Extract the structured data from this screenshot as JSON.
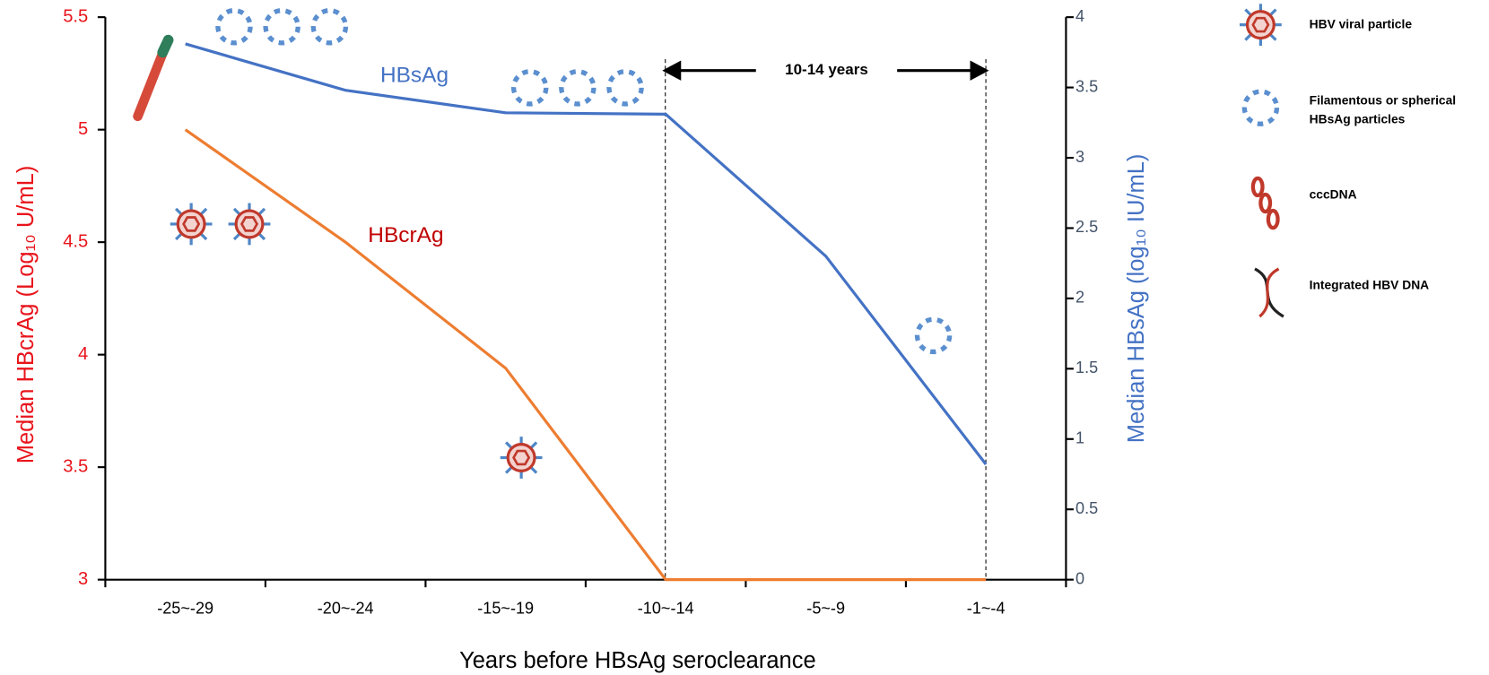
{
  "chart_data": {
    "type": "line",
    "categories": [
      "-25~-29",
      "-20~-24",
      "-15~-19",
      "-10~-14",
      "-5~-9",
      "-1~-4"
    ],
    "series": [
      {
        "name": "HBcrAg",
        "color": "#ed7d31",
        "values": [
          5.0,
          4.5,
          3.94,
          3.0,
          3.0,
          3.0
        ]
      },
      {
        "name": "HBsAg",
        "color": "#4472c4",
        "axis": "y2",
        "values": [
          3.81,
          3.48,
          3.32,
          3.31,
          2.3,
          0.82
        ]
      }
    ],
    "ylim": [
      3,
      5.5
    ],
    "yticks": [
      3,
      3.5,
      4,
      4.5,
      5,
      5.5
    ],
    "y2lim": [
      0,
      4
    ],
    "y2ticks": [
      0,
      0.5,
      1,
      1.5,
      2,
      2.5,
      3,
      3.5,
      4
    ],
    "ylabel": "Median HBcrAg (Log₁₀ U/mL)",
    "y2label": "Median HBsAg (log₁₀ IU/mL)",
    "xlabel": "Years before HBsAg seroclearance",
    "annotation": "10-14 years",
    "icon_legend": [
      [
        "HBV viral particle"
      ],
      [
        "Filamentous or spherical",
        "HBsAg particles"
      ],
      [
        "cccDNA"
      ],
      [
        "Integrated HBV DNA"
      ]
    ]
  }
}
